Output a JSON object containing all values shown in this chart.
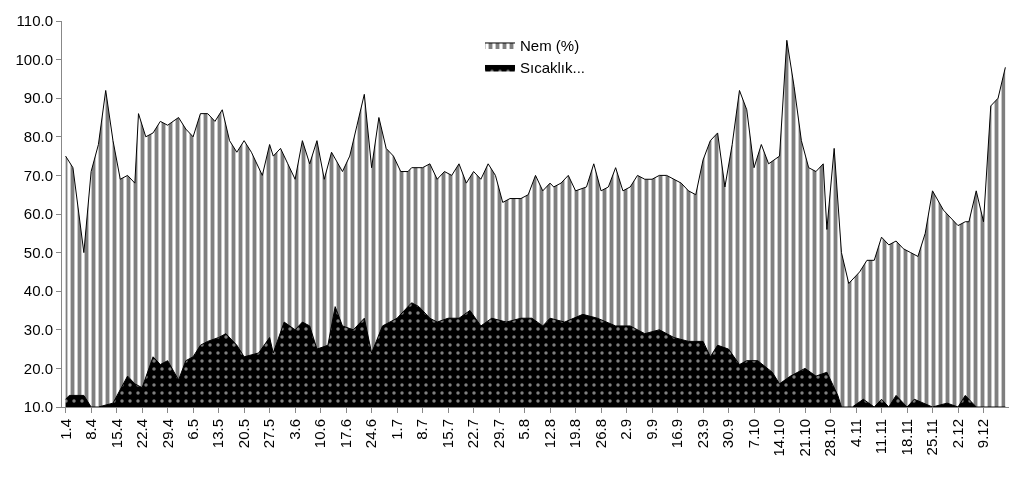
{
  "chart_data": {
    "type": "area",
    "series": [
      {
        "name": "Nem (%)",
        "color": "#000000",
        "x": [
          "--04-01",
          "--04-03",
          "--04-06",
          "--04-08",
          "--04-10",
          "--04-12",
          "--04-14",
          "--04-16",
          "--04-18",
          "--04-20",
          "--04-21",
          "--04-23",
          "--04-25",
          "--04-27",
          "--04-29",
          "--05-02",
          "--05-04",
          "--05-06",
          "--05-08",
          "--05-10",
          "--05-12",
          "--05-14",
          "--05-16",
          "--05-18",
          "--05-20",
          "--05-22",
          "--05-25",
          "--05-27",
          "--05-28",
          "--05-30",
          "--06-01",
          "--06-03",
          "--06-05",
          "--06-07",
          "--06-09",
          "--06-11",
          "--06-13",
          "--06-16",
          "--06-18",
          "--06-20",
          "--06-22",
          "--06-24",
          "--06-26",
          "--06-28",
          "--06-30",
          "--07-02",
          "--07-04",
          "--07-05",
          "--07-08",
          "--07-10",
          "--07-12",
          "--07-14",
          "--07-16",
          "--07-18",
          "--07-20",
          "--07-22",
          "--07-24",
          "--07-26",
          "--07-28",
          "--07-30",
          "--08-01",
          "--08-04",
          "--08-06",
          "--08-08",
          "--08-10",
          "--08-12",
          "--08-13",
          "--08-15",
          "--08-17",
          "--08-19",
          "--08-22",
          "--08-24",
          "--08-26",
          "--08-28",
          "--08-30",
          "--09-01",
          "--09-03",
          "--09-05",
          "--09-07",
          "--09-09",
          "--09-11",
          "--09-13",
          "--09-15",
          "--09-17",
          "--09-19",
          "--09-21",
          "--09-23",
          "--09-25",
          "--09-27",
          "--09-29",
          "--10-01",
          "--10-03",
          "--10-05",
          "--10-07",
          "--10-09",
          "--10-11",
          "--10-14",
          "--10-16",
          "--10-18",
          "--10-20",
          "--10-22",
          "--10-24",
          "--10-26",
          "--10-27",
          "--10-29",
          "--10-31",
          "--11-02",
          "--11-05",
          "--11-07",
          "--11-09",
          "--11-11",
          "--11-13",
          "--11-15",
          "--11-17",
          "--11-19",
          "--11-21",
          "--11-23",
          "--11-25",
          "--11-28",
          "--11-29",
          "--12-02",
          "--12-04",
          "--12-05",
          "--12-07",
          "--12-09",
          "--12-11",
          "--12-13",
          "--12-15"
        ],
        "values": [
          75,
          72,
          50,
          71,
          78,
          92,
          79,
          69,
          70,
          68,
          86,
          80,
          81,
          84,
          83,
          85,
          82,
          80,
          86,
          86,
          84,
          87,
          79,
          76,
          79,
          76,
          70,
          78,
          75,
          77,
          73,
          69,
          79,
          73,
          79,
          69,
          76,
          71,
          75,
          83,
          91,
          72,
          85,
          77,
          75,
          71,
          71,
          72,
          72,
          73,
          69,
          71,
          70,
          73,
          68,
          71,
          69,
          73,
          70,
          63,
          64,
          64,
          65,
          70,
          66,
          68,
          67,
          68,
          70,
          66,
          67,
          73,
          66,
          67,
          72,
          66,
          67,
          70,
          69,
          69,
          70,
          70,
          69,
          68,
          66,
          65,
          74,
          79,
          81,
          67,
          78,
          92,
          87,
          72,
          78,
          73,
          75,
          105,
          93,
          79,
          72,
          71,
          73,
          56,
          77,
          50,
          42,
          45,
          48,
          48,
          54,
          52,
          53,
          51,
          50,
          49,
          55,
          66,
          61,
          60,
          57,
          58,
          58,
          66,
          58,
          88,
          90,
          98
        ]
      },
      {
        "name": "Sıcaklık...",
        "color": "#000000",
        "x": [
          "--04-01",
          "--04-02",
          "--04-06",
          "--04-08",
          "--04-10",
          "--04-14",
          "--04-18",
          "--04-20",
          "--04-22",
          "--04-25",
          "--04-27",
          "--04-29",
          "--05-02",
          "--05-04",
          "--05-06",
          "--05-08",
          "--05-10",
          "--05-13",
          "--05-15",
          "--05-18",
          "--05-20",
          "--05-24",
          "--05-27",
          "--05-28",
          "--05-31",
          "--06-03",
          "--06-05",
          "--06-07",
          "--06-09",
          "--06-12",
          "--06-14",
          "--06-16",
          "--06-19",
          "--06-22",
          "--06-24",
          "--06-27",
          "--07-01",
          "--07-05",
          "--07-07",
          "--07-10",
          "--07-12",
          "--07-15",
          "--07-18",
          "--07-21",
          "--07-24",
          "--07-27",
          "--07-31",
          "--08-04",
          "--08-07",
          "--08-10",
          "--08-12",
          "--08-16",
          "--08-21",
          "--08-25",
          "--08-30",
          "--09-03",
          "--09-07",
          "--09-11",
          "--09-15",
          "--09-19",
          "--09-23",
          "--09-25",
          "--09-27",
          "--09-30",
          "--10-03",
          "--10-05",
          "--10-08",
          "--10-12",
          "--10-14",
          "--10-17",
          "--10-21",
          "--10-24",
          "--10-27",
          "--10-30",
          "--10-31",
          "--11-03",
          "--11-06",
          "--11-09",
          "--11-11",
          "--11-13",
          "--11-15",
          "--11-18",
          "--11-20",
          "--11-25",
          "--11-29",
          "--12-02",
          "--12-04",
          "--12-07",
          "--12-15"
        ],
        "values": [
          12,
          13,
          13,
          10,
          10,
          11,
          18,
          16,
          15,
          23,
          21,
          22,
          17,
          22,
          23,
          26,
          27,
          28,
          29,
          26,
          23,
          24,
          28,
          24,
          32,
          30,
          32,
          31,
          25,
          26,
          36,
          31,
          30,
          33,
          24,
          31,
          33,
          37,
          36,
          33,
          32,
          33,
          33,
          35,
          31,
          33,
          32,
          33,
          33,
          31,
          33,
          32,
          34,
          33,
          31,
          31,
          29,
          30,
          28,
          27,
          27,
          23,
          26,
          25,
          21,
          22,
          22,
          19,
          16,
          18,
          20,
          18,
          19,
          13,
          10,
          10,
          12,
          10,
          12,
          10,
          13,
          10,
          12,
          10,
          11,
          10,
          13,
          10,
          10
        ]
      }
    ],
    "xlim": [
      "--03-31",
      "--12-16"
    ],
    "xticks": [
      {
        "value": "--04-01",
        "label": "1.4"
      },
      {
        "value": "--04-08",
        "label": "8.4"
      },
      {
        "value": "--04-15",
        "label": "15.4"
      },
      {
        "value": "--04-22",
        "label": "22.4"
      },
      {
        "value": "--04-29",
        "label": "29.4"
      },
      {
        "value": "--05-06",
        "label": "6.5"
      },
      {
        "value": "--05-13",
        "label": "13.5"
      },
      {
        "value": "--05-20",
        "label": "20.5"
      },
      {
        "value": "--05-27",
        "label": "27.5"
      },
      {
        "value": "--06-03",
        "label": "3.6"
      },
      {
        "value": "--06-10",
        "label": "10.6"
      },
      {
        "value": "--06-17",
        "label": "17.6"
      },
      {
        "value": "--06-24",
        "label": "24.6"
      },
      {
        "value": "--07-01",
        "label": "1.7"
      },
      {
        "value": "--07-08",
        "label": "8.7"
      },
      {
        "value": "--07-15",
        "label": "15.7"
      },
      {
        "value": "--07-22",
        "label": "22.7"
      },
      {
        "value": "--07-29",
        "label": "29.7"
      },
      {
        "value": "--08-05",
        "label": "5.8"
      },
      {
        "value": "--08-12",
        "label": "12.8"
      },
      {
        "value": "--08-19",
        "label": "19.8"
      },
      {
        "value": "--08-26",
        "label": "26.8"
      },
      {
        "value": "--09-02",
        "label": "2.9"
      },
      {
        "value": "--09-09",
        "label": "9.9"
      },
      {
        "value": "--09-16",
        "label": "16.9"
      },
      {
        "value": "--09-23",
        "label": "23.9"
      },
      {
        "value": "--09-30",
        "label": "30.9"
      },
      {
        "value": "--10-07",
        "label": "7.10"
      },
      {
        "value": "--10-14",
        "label": "14.10"
      },
      {
        "value": "--10-21",
        "label": "21.10"
      },
      {
        "value": "--10-28",
        "label": "28.10"
      },
      {
        "value": "--11-04",
        "label": "4.11"
      },
      {
        "value": "--11-11",
        "label": "11.11"
      },
      {
        "value": "--11-18",
        "label": "18.11"
      },
      {
        "value": "--11-25",
        "label": "25.11"
      },
      {
        "value": "--12-02",
        "label": "2.12"
      },
      {
        "value": "--12-09",
        "label": "9.12"
      }
    ],
    "ylim": [
      10,
      110
    ],
    "yticks": [
      {
        "value": 10,
        "label": "10.0"
      },
      {
        "value": 20,
        "label": "20.0"
      },
      {
        "value": 30,
        "label": "30.0"
      },
      {
        "value": 40,
        "label": "40.0"
      },
      {
        "value": 50,
        "label": "50.0"
      },
      {
        "value": 60,
        "label": "60.0"
      },
      {
        "value": 70,
        "label": "70.0"
      },
      {
        "value": 80,
        "label": "80.0"
      },
      {
        "value": 90,
        "label": "90.0"
      },
      {
        "value": 100,
        "label": "100.0"
      },
      {
        "value": 110,
        "label": "110.0"
      }
    ],
    "legend": "top"
  }
}
